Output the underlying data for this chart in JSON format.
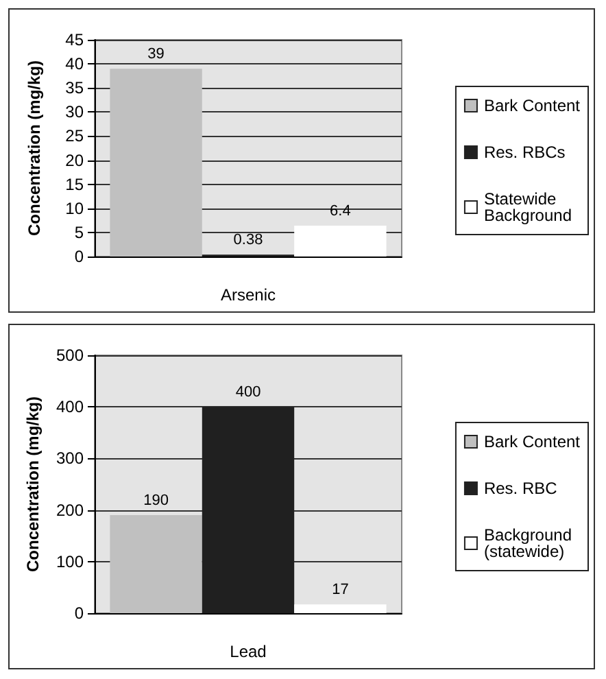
{
  "chart_data": [
    {
      "type": "bar",
      "xlabel": "Arsenic",
      "ylabel": "Concentration (mg/kg)",
      "categories": [
        null
      ],
      "series": [
        {
          "name": "Bark Content",
          "color": "#c0c0c0",
          "values": [
            39
          ]
        },
        {
          "name": "Res. RBCs",
          "color": "#202020",
          "values": [
            0.38
          ]
        },
        {
          "name": "Statewide Background",
          "color": "#ffffff",
          "values": [
            6.4
          ]
        }
      ],
      "ylim": [
        0,
        45
      ],
      "yticks": [
        0,
        5,
        10,
        15,
        20,
        25,
        30,
        35,
        40,
        45
      ],
      "grid": "y",
      "legend": "right",
      "data_labels": true
    },
    {
      "type": "bar",
      "xlabel": "Lead",
      "ylabel": "Concentration (mg/kg)",
      "categories": [
        null
      ],
      "series": [
        {
          "name": "Bark Content",
          "color": "#c0c0c0",
          "values": [
            190
          ]
        },
        {
          "name": "Res. RBC",
          "color": "#202020",
          "values": [
            400
          ]
        },
        {
          "name": "Background (statewide)",
          "color": "#ffffff",
          "values": [
            17
          ]
        }
      ],
      "ylim": [
        0,
        500
      ],
      "yticks": [
        0,
        100,
        200,
        300,
        400,
        500
      ],
      "grid": "y",
      "legend": "right",
      "data_labels": true
    }
  ]
}
